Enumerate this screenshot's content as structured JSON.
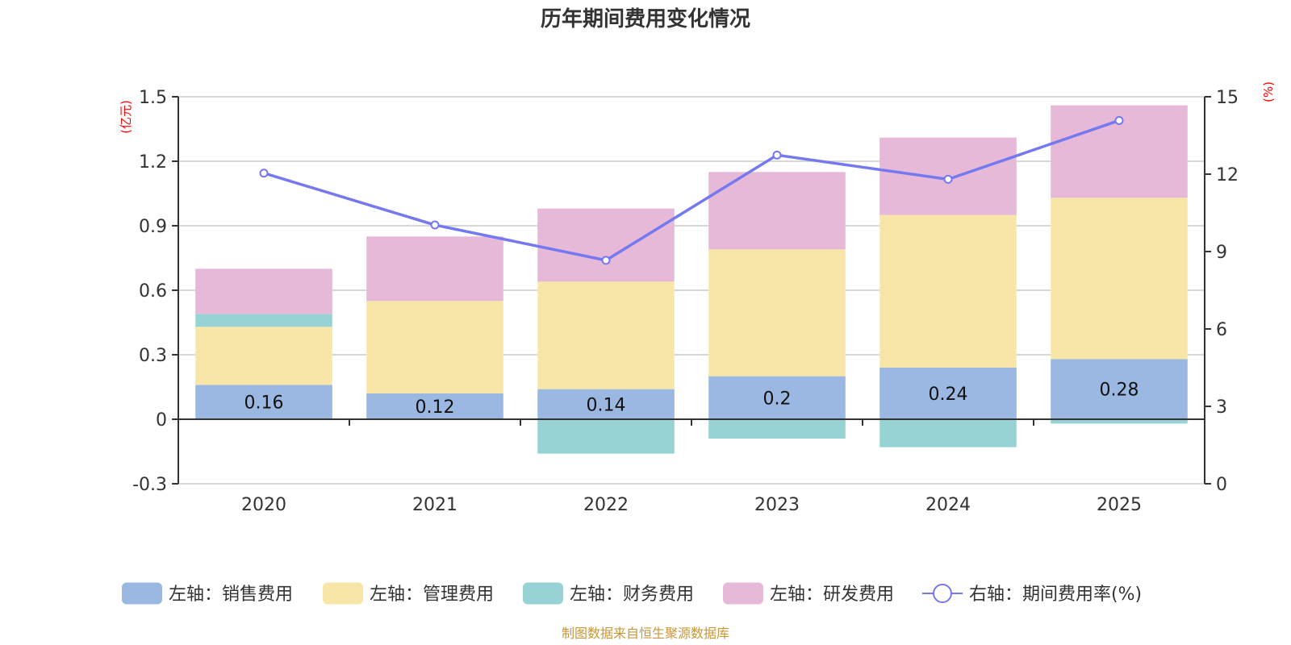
{
  "chart_data": {
    "type": "bar",
    "stacked": true,
    "title": "历年期间费用变化情况",
    "categories": [
      "2020",
      "2021",
      "2022",
      "2023",
      "2024",
      "2025"
    ],
    "left_axis": {
      "unit_label": "(亿元)",
      "ylim": [
        -0.3,
        1.5
      ],
      "ticks": [
        -0.3,
        0,
        0.3,
        0.6,
        0.9,
        1.2,
        1.5
      ],
      "tick_labels": [
        "-0.3",
        "0",
        "0.3",
        "0.6",
        "0.9",
        "1.2",
        "1.5"
      ]
    },
    "right_axis": {
      "unit_label": "(%)",
      "ylim": [
        0,
        15
      ],
      "ticks": [
        0,
        3,
        6,
        9,
        12,
        15
      ],
      "tick_labels": [
        "0",
        "3",
        "6",
        "9",
        "12",
        "15"
      ]
    },
    "series": [
      {
        "name": "左轴：销售费用",
        "type": "bar",
        "axis": "left",
        "color": "#9bb8e2",
        "values": [
          0.16,
          0.12,
          0.14,
          0.2,
          0.24,
          0.28
        ],
        "labels": [
          "0.16",
          "0.12",
          "0.14",
          "0.2",
          "0.24",
          "0.28"
        ]
      },
      {
        "name": "左轴：管理费用",
        "type": "bar",
        "axis": "left",
        "color": "#f8e6a9",
        "values": [
          0.27,
          0.43,
          0.5,
          0.59,
          0.71,
          0.75
        ]
      },
      {
        "name": "左轴：财务费用",
        "type": "bar",
        "axis": "left",
        "color": "#97d3d4",
        "values": [
          0.06,
          0.0,
          -0.16,
          -0.09,
          -0.13,
          -0.02
        ]
      },
      {
        "name": "左轴：研发费用",
        "type": "bar",
        "axis": "left",
        "color": "#e7b9d9",
        "values": [
          0.21,
          0.3,
          0.34,
          0.36,
          0.36,
          0.43
        ]
      },
      {
        "name": "右轴：期间费用率(%)",
        "type": "line",
        "axis": "right",
        "color": "#7479f0",
        "values": [
          12.04,
          10.03,
          8.66,
          12.74,
          11.8,
          14.08
        ]
      }
    ],
    "grid": true,
    "legend_position": "bottom"
  },
  "footer": {
    "source": "制图数据来自恒生聚源数据库",
    "color": "#c8963a"
  }
}
